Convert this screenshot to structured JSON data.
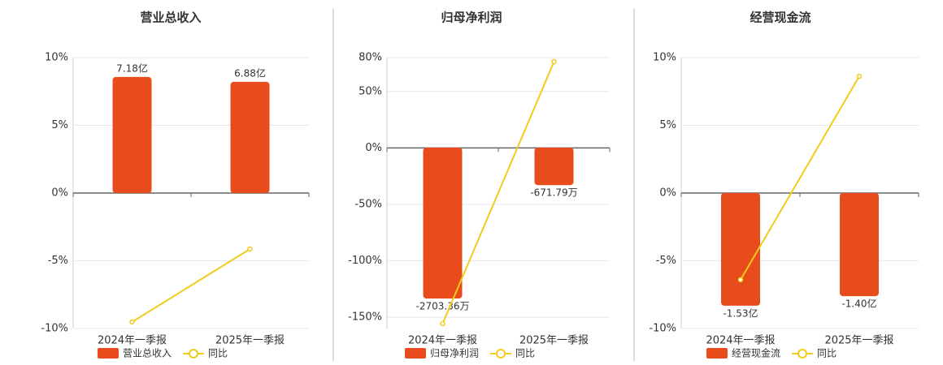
{
  "chart_data": [
    {
      "type": "bar",
      "title": "营业总收入",
      "categories": [
        "2024年一季报",
        "2025年一季报"
      ],
      "series": [
        {
          "name": "营业总收入",
          "type": "bar",
          "axis": "y2",
          "color": "#e84c1c",
          "values": [
            7.18,
            6.88
          ],
          "value_labels": [
            "7.18亿",
            "6.88亿"
          ]
        },
        {
          "name": "同比",
          "type": "line",
          "color": "#f0cc1c",
          "values": [
            -9.52,
            -4.13
          ]
        }
      ],
      "ylim": [
        -10,
        10
      ],
      "yticks": [
        {
          "value": -10,
          "label": "-10%"
        },
        {
          "value": -5,
          "label": "-5%"
        },
        {
          "value": 0,
          "label": "0%"
        },
        {
          "value": 5,
          "label": "5%"
        },
        {
          "value": 10,
          "label": "10%"
        }
      ],
      "y2lim": [
        -8.38,
        8.38
      ],
      "grid": true
    },
    {
      "type": "bar",
      "title": "归母净利润",
      "categories": [
        "2024年一季报",
        "2025年一季报"
      ],
      "series": [
        {
          "name": "归母净利润",
          "type": "bar",
          "axis": "y2",
          "color": "#e84c1c",
          "values": [
            -2703.36,
            -671.79
          ],
          "value_labels": [
            "-2703.36万",
            "-671.79万"
          ]
        },
        {
          "name": "同比",
          "type": "line",
          "color": "#f0cc1c",
          "values": [
            -155.7,
            76.4
          ]
        }
      ],
      "ylim": [
        -160,
        80
      ],
      "yticks": [
        {
          "value": -150,
          "label": "-150%"
        },
        {
          "value": -100,
          "label": "-100%"
        },
        {
          "value": -50,
          "label": "-50%"
        },
        {
          "value": 0,
          "label": "0%"
        },
        {
          "value": 50,
          "label": "50%"
        },
        {
          "value": 80,
          "label": "80%"
        }
      ],
      "y2lim": [
        -3241,
        1613
      ],
      "grid": true
    },
    {
      "type": "bar",
      "title": "经营现金流",
      "categories": [
        "2024年一季报",
        "2025年一季报"
      ],
      "series": [
        {
          "name": "经营现金流",
          "type": "bar",
          "axis": "y2",
          "color": "#e84c1c",
          "values": [
            -1.53,
            -1.4
          ],
          "value_labels": [
            "-1.53亿",
            "-1.40亿"
          ]
        },
        {
          "name": "同比",
          "type": "line",
          "color": "#f0cc1c",
          "values": [
            -6.4,
            8.62
          ]
        }
      ],
      "ylim": [
        -10,
        10
      ],
      "yticks": [
        {
          "value": -10,
          "label": "-10%"
        },
        {
          "value": -5,
          "label": "-5%"
        },
        {
          "value": 0,
          "label": "0%"
        },
        {
          "value": 5,
          "label": "5%"
        },
        {
          "value": 10,
          "label": "10%"
        }
      ],
      "y2lim": [
        -1.84,
        1.84
      ],
      "grid": true
    }
  ]
}
